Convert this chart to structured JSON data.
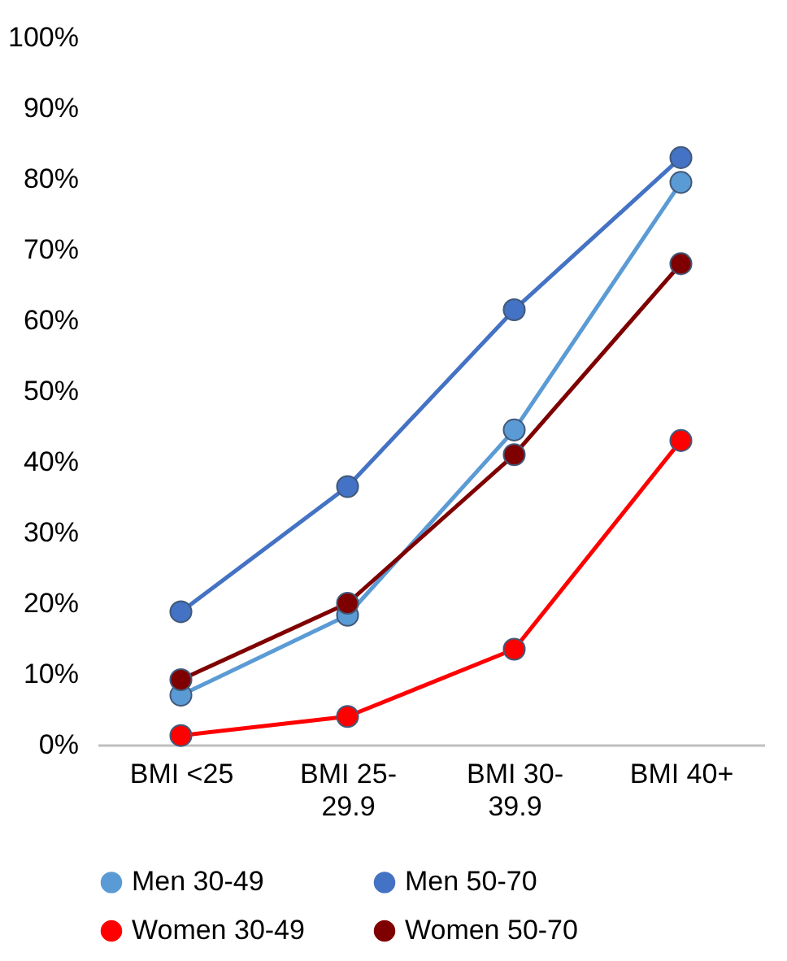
{
  "chart_data": {
    "type": "line",
    "categories": [
      "BMI <25",
      "BMI 25-29.9",
      "BMI 30-39.9",
      "BMI 40+"
    ],
    "series": [
      {
        "name": "Men 30-49",
        "color": "#5b9bd5",
        "values": [
          7,
          18.3,
          44.5,
          79.5
        ]
      },
      {
        "name": "Men 50-70",
        "color": "#4472c4",
        "values": [
          18.8,
          36.5,
          61.5,
          83
        ]
      },
      {
        "name": "Women 30-49",
        "color": "#ff0000",
        "values": [
          1.3,
          4,
          13.5,
          43
        ]
      },
      {
        "name": "Women 50-70",
        "color": "#7f0000",
        "values": [
          9.2,
          20,
          41,
          68
        ]
      }
    ],
    "ylim": [
      0,
      100
    ],
    "yticks": [
      {
        "value": 0,
        "label": "0%"
      },
      {
        "value": 10,
        "label": "10%"
      },
      {
        "value": 20,
        "label": "20%"
      },
      {
        "value": 30,
        "label": "30%"
      },
      {
        "value": 40,
        "label": "40%"
      },
      {
        "value": 50,
        "label": "50%"
      },
      {
        "value": 60,
        "label": "60%"
      },
      {
        "value": 70,
        "label": "70%"
      },
      {
        "value": 80,
        "label": "80%"
      },
      {
        "value": 90,
        "label": "90%"
      },
      {
        "value": 100,
        "label": "100%"
      }
    ],
    "grid": false,
    "legend": "bottom",
    "marker": "circle",
    "line_style": "solid"
  }
}
